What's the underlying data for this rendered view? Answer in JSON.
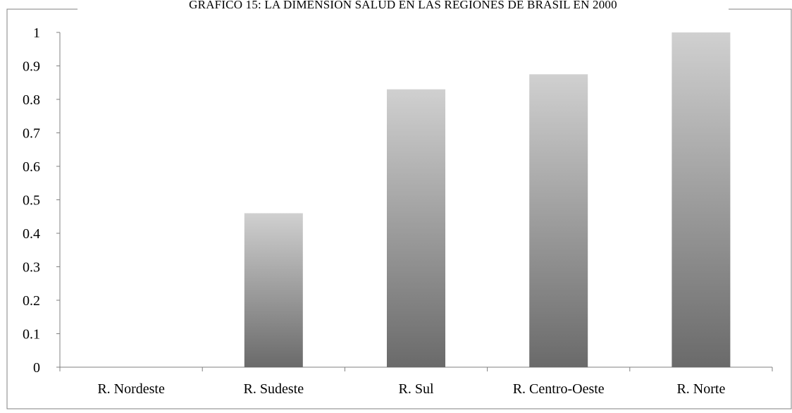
{
  "chart_data": {
    "type": "bar",
    "title": "GRÁFICO 15: LA DIMENSIÓN SALUD EN LAS REGIONES DE BRASIL EN 2000",
    "categories": [
      "R. Nordeste",
      "R. Sudeste",
      "R. Sul",
      "R. Centro-Oeste",
      "R. Norte"
    ],
    "values": [
      0,
      0.46,
      0.83,
      0.875,
      1.0
    ],
    "ylim": [
      0,
      1
    ],
    "yticks": [
      "0",
      "0.1",
      "0.2",
      "0.3",
      "0.4",
      "0.5",
      "0.6",
      "0.7",
      "0.8",
      "0.9",
      "1"
    ],
    "xlabel": "",
    "ylabel": "",
    "grid": false,
    "legend": false,
    "bar_color_top": "#d0d0d0",
    "bar_color_bottom": "#6a6a6a",
    "axis_color": "#808080"
  }
}
